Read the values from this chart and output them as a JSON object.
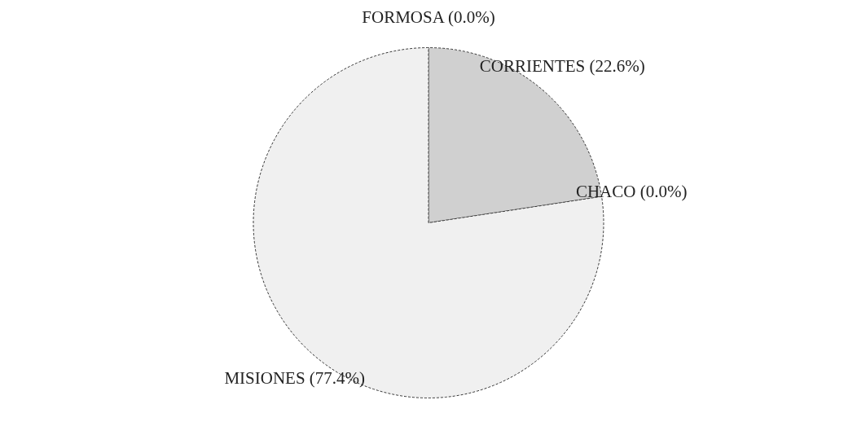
{
  "chart_data": {
    "type": "pie",
    "categories": [
      "FORMOSA (0.0%)",
      "CORRIENTES (22.6%)",
      "CHACO (0.0%)",
      "MISIONES (77.4%)"
    ],
    "values": [
      0.0,
      22.6,
      0.0,
      77.4
    ],
    "colors": [
      "#ffffff",
      "#d0d0d0",
      "#ffffff",
      "#f0f0f0"
    ]
  }
}
